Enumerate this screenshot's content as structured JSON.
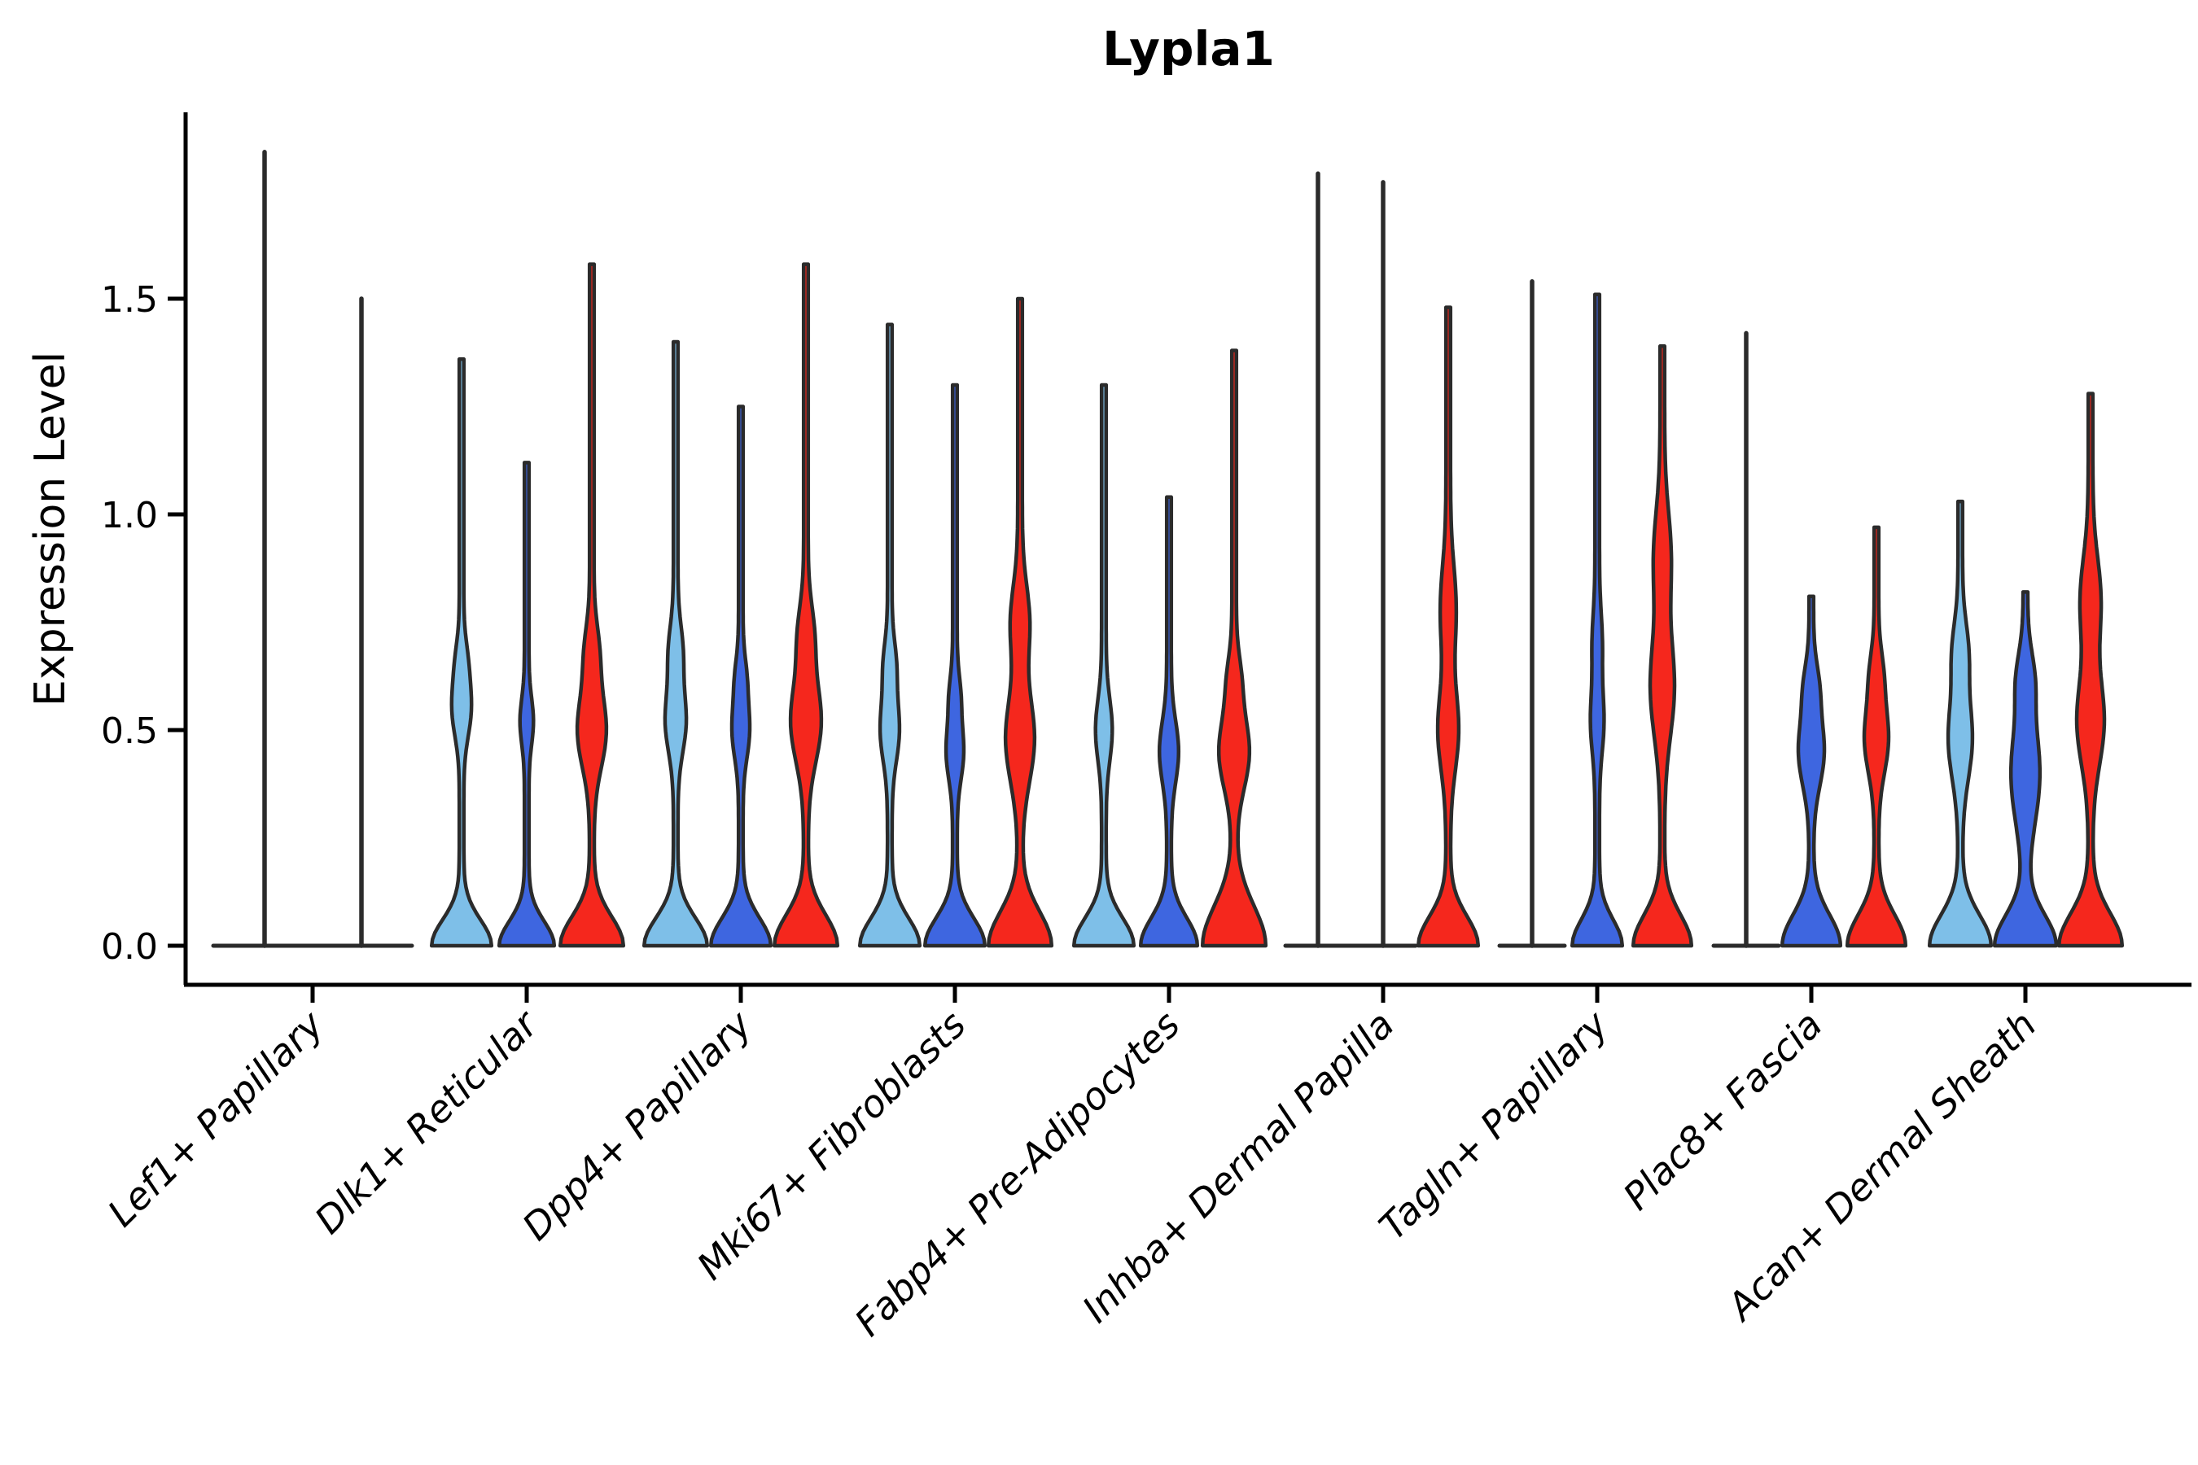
{
  "chart_data": {
    "type": "violin",
    "title": "Lypla1",
    "ylabel": "Expression Level",
    "xlabel": "",
    "yticks": [
      0.0,
      0.5,
      1.0,
      1.5
    ],
    "ylim": [
      0,
      1.93
    ],
    "grid": false,
    "legend": "none",
    "categories": [
      "Lef1+ Papillary",
      "Dlk1+ Reticular",
      "Dpp4+ Papillary",
      "Mki67+ Fibroblasts",
      "Fabp4+ Pre-Adipocytes",
      "Inhba+ Dermal Papilla",
      "Tagln+ Papillary",
      "Plac8+ Fascia",
      "Acan+ Dermal Sheath"
    ],
    "palette": {
      "light_blue": "#7EBFE8",
      "dark_blue": "#3E66E0",
      "red": "#F5271D",
      "outline": "#2B2B2B",
      "axis": "#000000"
    },
    "groups": [
      {
        "category": "Lef1+ Papillary",
        "flat_span": [
          -122,
          122
        ],
        "violins": [
          {
            "color": "none",
            "kind": "spike",
            "offset": -59,
            "max": 1.84
          },
          {
            "color": "none",
            "kind": "spike",
            "offset": 60,
            "max": 1.5
          }
        ]
      },
      {
        "category": "Dlk1+ Reticular",
        "violins": [
          {
            "color": "light_blue",
            "kind": "violin",
            "offset": -80,
            "max": 1.36,
            "base": [
              34,
              0.085
            ],
            "lens": [
              [
                9,
                0.55,
                0.09
              ],
              [
                4,
                0.66,
                0.07
              ]
            ]
          },
          {
            "color": "dark_blue",
            "kind": "violin",
            "offset": 0,
            "max": 1.12,
            "base": [
              31,
              0.08
            ],
            "lens": [
              [
                5.5,
                0.52,
                0.075
              ]
            ]
          },
          {
            "color": "red",
            "kind": "violin",
            "offset": 80,
            "max": 1.58,
            "base": [
              36,
              0.095
            ],
            "lens": [
              [
                15,
                0.5,
                0.12
              ],
              [
                6,
                0.68,
                0.09
              ]
            ]
          }
        ]
      },
      {
        "category": "Dpp4+ Papillary",
        "violins": [
          {
            "color": "light_blue",
            "kind": "violin",
            "offset": -80,
            "max": 1.4,
            "base": [
              36,
              0.09
            ],
            "lens": [
              [
                10,
                0.52,
                0.1
              ],
              [
                6,
                0.68,
                0.09
              ]
            ]
          },
          {
            "color": "dark_blue",
            "kind": "violin",
            "offset": 0,
            "max": 1.25,
            "base": [
              34,
              0.09
            ],
            "lens": [
              [
                8,
                0.5,
                0.09
              ],
              [
                4,
                0.62,
                0.07
              ]
            ]
          },
          {
            "color": "red",
            "kind": "violin",
            "offset": 80,
            "max": 1.58,
            "base": [
              36,
              0.1
            ],
            "lens": [
              [
                16,
                0.52,
                0.13
              ],
              [
                7,
                0.72,
                0.1
              ]
            ]
          }
        ]
      },
      {
        "category": "Mki67+ Fibroblasts",
        "violins": [
          {
            "color": "light_blue",
            "kind": "violin",
            "offset": -80,
            "max": 1.44,
            "base": [
              34,
              0.09
            ],
            "lens": [
              [
                9,
                0.5,
                0.1
              ],
              [
                5,
                0.65,
                0.08
              ]
            ]
          },
          {
            "color": "dark_blue",
            "kind": "violin",
            "offset": 0,
            "max": 1.3,
            "base": [
              34,
              0.09
            ],
            "lens": [
              [
                8,
                0.45,
                0.09
              ],
              [
                4,
                0.58,
                0.07
              ]
            ]
          },
          {
            "color": "red",
            "kind": "violin",
            "offset": 80,
            "max": 1.5,
            "base": [
              36,
              0.11
            ],
            "lens": [
              [
                15,
                0.48,
                0.14
              ],
              [
                9,
                0.75,
                0.12
              ]
            ]
          }
        ]
      },
      {
        "category": "Fabp4+ Pre-Adipocytes",
        "violins": [
          {
            "color": "light_blue",
            "kind": "violin",
            "offset": -80,
            "max": 1.3,
            "base": [
              34,
              0.09
            ],
            "lens": [
              [
                7.5,
                0.5,
                0.1
              ]
            ]
          },
          {
            "color": "dark_blue",
            "kind": "violin",
            "offset": 0,
            "max": 1.04,
            "base": [
              32,
              0.09
            ],
            "lens": [
              [
                9,
                0.45,
                0.1
              ]
            ]
          },
          {
            "color": "red",
            "kind": "violin",
            "offset": 80,
            "max": 1.38,
            "base": [
              36,
              0.13
            ],
            "lens": [
              [
                16,
                0.45,
                0.12
              ],
              [
                5,
                0.62,
                0.08
              ]
            ]
          }
        ]
      },
      {
        "category": "Inhba+ Dermal Papilla",
        "violins": [
          {
            "color": "none",
            "kind": "spike",
            "offset": -80,
            "max": 1.79,
            "flat_halfwidth": 40
          },
          {
            "color": "none",
            "kind": "spike",
            "offset": 0,
            "max": 1.77,
            "flat_halfwidth": 40
          },
          {
            "color": "red",
            "kind": "violin",
            "offset": 80,
            "max": 1.48,
            "base": [
              34,
              0.095
            ],
            "lens": [
              [
                10,
                0.5,
                0.13
              ],
              [
                7,
                0.78,
                0.14
              ]
            ]
          }
        ]
      },
      {
        "category": "Tagln+ Papillary",
        "violins": [
          {
            "color": "none",
            "kind": "spike",
            "offset": -80,
            "max": 1.54,
            "flat_halfwidth": 40
          },
          {
            "color": "dark_blue",
            "kind": "violin",
            "offset": 0,
            "max": 1.51,
            "base": [
              28,
              0.085
            ],
            "lens": [
              [
                5.5,
                0.52,
                0.1
              ],
              [
                3.5,
                0.7,
                0.1
              ]
            ]
          },
          {
            "color": "red",
            "kind": "violin",
            "offset": 80,
            "max": 1.39,
            "base": [
              33,
              0.1
            ],
            "lens": [
              [
                12,
                0.6,
                0.16
              ],
              [
                8,
                0.9,
                0.15
              ]
            ]
          }
        ]
      },
      {
        "category": "Plac8+ Fascia",
        "violins": [
          {
            "color": "none",
            "kind": "spike",
            "offset": -80,
            "max": 1.42,
            "flat_halfwidth": 40
          },
          {
            "color": "dark_blue",
            "kind": "violin",
            "offset": 0,
            "max": 0.81,
            "base": [
              33,
              0.1
            ],
            "lens": [
              [
                13,
                0.45,
                0.11
              ],
              [
                6,
                0.6,
                0.08
              ]
            ]
          },
          {
            "color": "red",
            "kind": "violin",
            "offset": 80,
            "max": 0.97,
            "base": [
              33,
              0.1
            ],
            "lens": [
              [
                12,
                0.48,
                0.11
              ],
              [
                5,
                0.63,
                0.08
              ]
            ]
          }
        ]
      },
      {
        "category": "Acan+ Dermal Sheath",
        "violins": [
          {
            "color": "light_blue",
            "kind": "violin",
            "offset": -80,
            "max": 1.03,
            "base": [
              35,
              0.1
            ],
            "lens": [
              [
                12,
                0.48,
                0.13
              ],
              [
                7,
                0.68,
                0.1
              ]
            ]
          },
          {
            "color": "dark_blue",
            "kind": "violin",
            "offset": 0,
            "max": 0.82,
            "base": [
              35,
              0.1
            ],
            "lens": [
              [
                15,
                0.4,
                0.165
              ],
              [
                7,
                0.62,
                0.09
              ]
            ]
          },
          {
            "color": "red",
            "kind": "violin",
            "offset": 80,
            "max": 1.28,
            "base": [
              36,
              0.105
            ],
            "lens": [
              [
                14,
                0.52,
                0.14
              ],
              [
                10,
                0.8,
                0.14
              ]
            ]
          }
        ]
      }
    ]
  }
}
